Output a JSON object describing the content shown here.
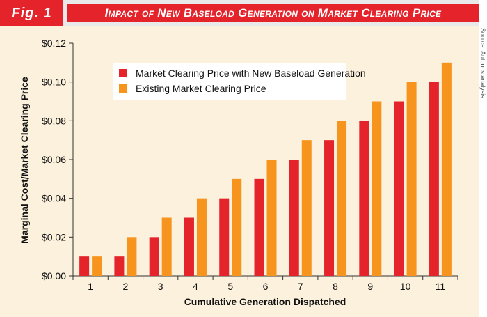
{
  "header": {
    "fig_label": "Fig. 1",
    "title": "Impact of New Baseload Generation on Market Clearing Price"
  },
  "source_note": "Source: Author's analysis",
  "colors": {
    "red": "#e4232b",
    "orange": "#f7941e",
    "panel": "#fbf1dd",
    "header_bg": "#e9e9ea"
  },
  "chart_data": {
    "type": "bar",
    "title": "Impact of New Baseload Generation on Market Clearing Price",
    "xlabel": "Cumulative Generation Dispatched",
    "ylabel": "Marginal Cost/Market Clearing Price",
    "categories": [
      "1",
      "2",
      "3",
      "4",
      "5",
      "6",
      "7",
      "8",
      "9",
      "10",
      "11"
    ],
    "series": [
      {
        "name": "Market Clearing Price with New Baseload Generation",
        "color": "#e4232b",
        "values": [
          0.01,
          0.01,
          0.02,
          0.03,
          0.04,
          0.05,
          0.06,
          0.07,
          0.08,
          0.09,
          0.1
        ]
      },
      {
        "name": "Existing Market Clearing Price",
        "color": "#f7941e",
        "values": [
          0.01,
          0.02,
          0.03,
          0.04,
          0.05,
          0.06,
          0.07,
          0.08,
          0.09,
          0.1,
          0.11
        ]
      }
    ],
    "ylim": [
      0,
      0.12
    ],
    "yticks": [
      0.0,
      0.02,
      0.04,
      0.06,
      0.08,
      0.1,
      0.12
    ],
    "ytick_labels": [
      "$0.00",
      "$0.02",
      "$0.04",
      "$0.06",
      "$0.08",
      "$0.10",
      "$0.12"
    ],
    "legend_position": "top-left",
    "grid": false
  }
}
